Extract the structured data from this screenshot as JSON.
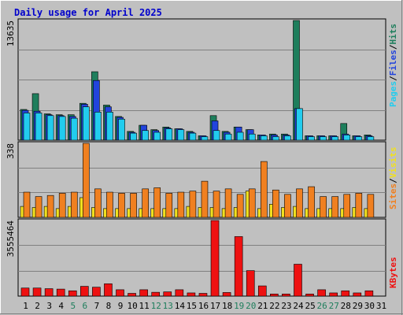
{
  "chart_data": [
    {
      "type": "bar",
      "title": "Daily usage for April 2025",
      "categories": [
        "1",
        "2",
        "3",
        "4",
        "5",
        "6",
        "7",
        "8",
        "9",
        "10",
        "11",
        "12",
        "13",
        "14",
        "15",
        "16",
        "17",
        "18",
        "19",
        "20",
        "21",
        "22",
        "23",
        "24",
        "25",
        "26",
        "27",
        "28",
        "29",
        "30",
        "31"
      ],
      "weekend_days": [
        "5",
        "6",
        "12",
        "13",
        "19",
        "20",
        "26",
        "27"
      ],
      "ymax_label": "13635",
      "ylim": [
        0,
        13635
      ],
      "series": [
        {
          "name": "Hits",
          "color": "#1e7e5c",
          "values": [
            3500,
            5300,
            3000,
            2900,
            2900,
            4200,
            7800,
            4000,
            2700,
            1000,
            1700,
            1200,
            1500,
            1300,
            1000,
            500,
            2800,
            1000,
            1500,
            1200,
            600,
            700,
            700,
            13635,
            500,
            500,
            500,
            1900,
            500,
            600,
            0
          ]
        },
        {
          "name": "Files",
          "color": "#2244dd",
          "values": [
            3400,
            3300,
            2900,
            2800,
            2700,
            4100,
            6800,
            3800,
            2600,
            900,
            1700,
            1100,
            1400,
            1300,
            900,
            500,
            2200,
            900,
            1500,
            1200,
            600,
            600,
            600,
            3600,
            500,
            500,
            500,
            700,
            500,
            500,
            0
          ]
        },
        {
          "name": "Pages",
          "color": "#22ccee",
          "values": [
            3100,
            3100,
            2800,
            2700,
            2500,
            3800,
            3200,
            3200,
            2400,
            800,
            1100,
            900,
            1300,
            1200,
            800,
            400,
            1100,
            700,
            900,
            700,
            500,
            400,
            500,
            3600,
            400,
            400,
            400,
            600,
            400,
            400,
            0
          ]
        }
      ],
      "legend": [
        "Pages",
        "/",
        "Files",
        "/",
        "Hits"
      ]
    },
    {
      "type": "bar",
      "ymax_label": "338",
      "ylim": [
        0,
        338
      ],
      "series": [
        {
          "name": "Visits",
          "color": "#f0e020",
          "values": [
            50,
            45,
            50,
            40,
            50,
            90,
            45,
            40,
            40,
            40,
            40,
            40,
            40,
            40,
            50,
            45,
            45,
            40,
            45,
            120,
            40,
            60,
            45,
            50,
            40,
            40,
            40,
            40,
            45,
            40,
            0
          ]
        },
        {
          "name": "Sites",
          "color": "#f08020",
          "values": [
            115,
            95,
            100,
            110,
            115,
            338,
            130,
            115,
            110,
            110,
            130,
            135,
            110,
            115,
            120,
            165,
            120,
            130,
            105,
            130,
            255,
            125,
            105,
            130,
            140,
            95,
            95,
            105,
            110,
            105,
            0
          ]
        }
      ],
      "legend": [
        "Sites",
        "/",
        "Visits"
      ]
    },
    {
      "type": "bar",
      "ymax_label": "3555464",
      "ylim": [
        0,
        3555464
      ],
      "series": [
        {
          "name": "KBytes",
          "color": "#ee1111",
          "values": [
            380000,
            380000,
            350000,
            330000,
            250000,
            460000,
            420000,
            580000,
            300000,
            130000,
            300000,
            180000,
            200000,
            300000,
            150000,
            130000,
            3555464,
            170000,
            2800000,
            1200000,
            480000,
            100000,
            100000,
            1500000,
            100000,
            300000,
            150000,
            250000,
            150000,
            250000,
            0
          ]
        }
      ],
      "legend": [
        "KBytes"
      ]
    }
  ],
  "colors": {
    "frame_bg": "#c0c0c0",
    "plot_bg": "#c0c0c0",
    "title_color": "#0000cc",
    "weekday_label": "#000000",
    "weekend_label": "#1e7e5c",
    "separator": "#ffffff",
    "legend_sep": "#000000"
  }
}
